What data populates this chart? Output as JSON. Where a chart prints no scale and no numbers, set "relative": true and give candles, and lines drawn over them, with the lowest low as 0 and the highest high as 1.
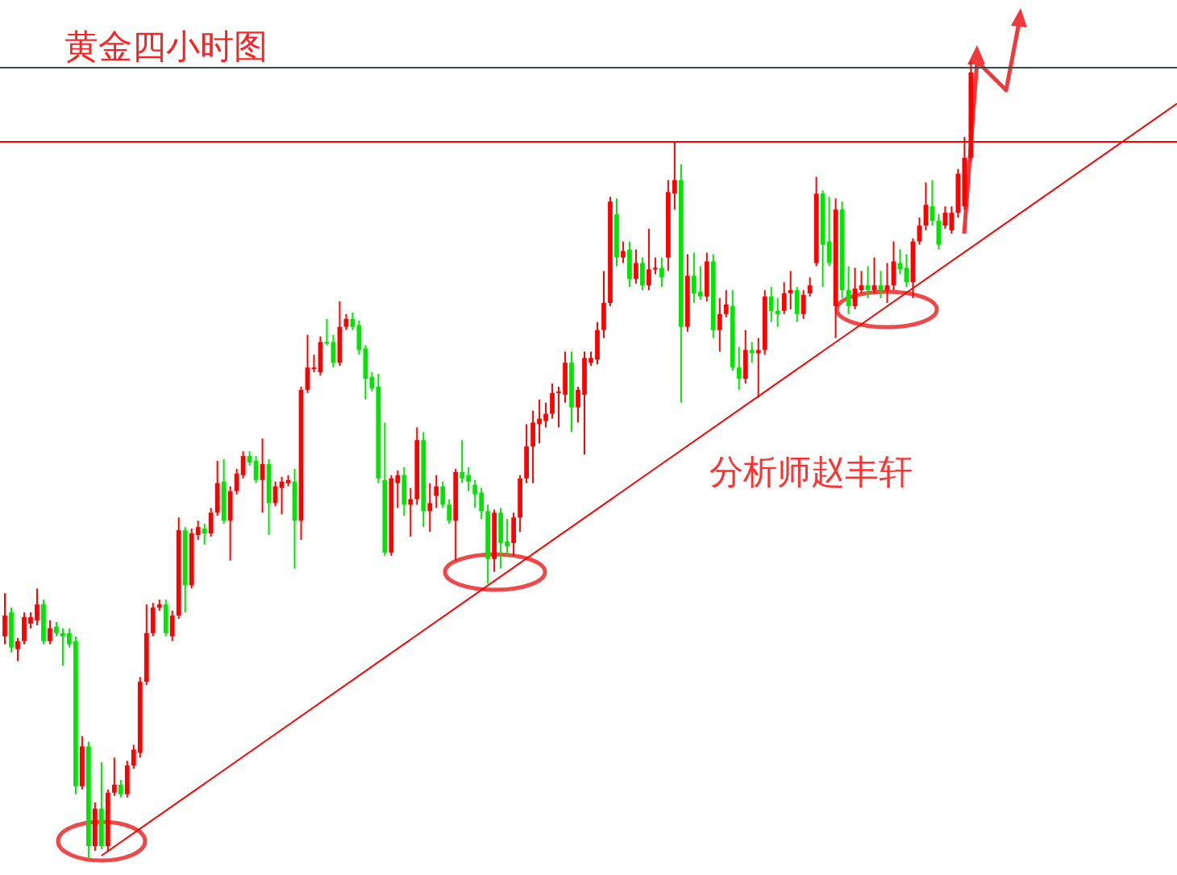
{
  "chart_data": {
    "type": "candlestick",
    "relative": true,
    "title": "黄金四小时图",
    "annotations": [
      "分析师赵丰轩"
    ],
    "categories": [
      null,
      null,
      null,
      null,
      null,
      null,
      null,
      null,
      null,
      null,
      null,
      null,
      null,
      null,
      null,
      null,
      null,
      null,
      null,
      null,
      null,
      null,
      null,
      null,
      null,
      null,
      null,
      null,
      null,
      null,
      null,
      null,
      null,
      null,
      null,
      null,
      null,
      null,
      null,
      null,
      null,
      null,
      null,
      null,
      null,
      null,
      null,
      null,
      null,
      null,
      null,
      null,
      null,
      null,
      null,
      null,
      null,
      null,
      null,
      null,
      null,
      null,
      null,
      null,
      null,
      null,
      null,
      null,
      null,
      null,
      null,
      null,
      null,
      null,
      null,
      null,
      null,
      null,
      null,
      null,
      null,
      null,
      null,
      null,
      null,
      null,
      null,
      null,
      null,
      null,
      null,
      null,
      null,
      null,
      null,
      null,
      null,
      null,
      null,
      null,
      null,
      null,
      null,
      null,
      null,
      null,
      null,
      null,
      null,
      null,
      null,
      null,
      null,
      null,
      null,
      null,
      null,
      null,
      null,
      null,
      null,
      null,
      null,
      null,
      null,
      null,
      null,
      null,
      null,
      null,
      null,
      null,
      null,
      null,
      null,
      null,
      null,
      null,
      null,
      null,
      null,
      null,
      null,
      null,
      null,
      null,
      null,
      null,
      null,
      null,
      null,
      null,
      null,
      null,
      null,
      null,
      null,
      null,
      null,
      null,
      null,
      null,
      null,
      null,
      null,
      null,
      null,
      null,
      null,
      null,
      null,
      null,
      null,
      null,
      null,
      null,
      null,
      null,
      null,
      null,
      null,
      null,
      null
    ],
    "ohlc": [
      [
        0.279,
        0.333,
        0.269,
        0.305
      ],
      [
        0.309,
        0.315,
        0.259,
        0.265
      ],
      [
        0.263,
        0.277,
        0.248,
        0.273
      ],
      [
        0.273,
        0.309,
        0.269,
        0.303
      ],
      [
        0.295,
        0.309,
        0.289,
        0.303
      ],
      [
        0.299,
        0.339,
        0.293,
        0.319
      ],
      [
        0.319,
        0.325,
        0.269,
        0.273
      ],
      [
        0.273,
        0.299,
        0.269,
        0.289
      ],
      [
        0.291,
        0.297,
        0.279,
        0.283
      ],
      [
        0.283,
        0.289,
        0.242,
        0.279
      ],
      [
        0.283,
        0.289,
        0.265,
        0.269
      ],
      [
        0.273,
        0.279,
        0.081,
        0.091
      ],
      [
        0.091,
        0.154,
        0.087,
        0.141
      ],
      [
        0.141,
        0.147,
        0,
        0.016
      ],
      [
        0.016,
        0.071,
        0.01,
        0.063
      ],
      [
        0.063,
        0.121,
        0.012,
        0.016
      ],
      [
        0.016,
        0.087,
        0.01,
        0.083
      ],
      [
        0.083,
        0.127,
        0.079,
        0.093
      ],
      [
        0.093,
        0.099,
        0.077,
        0.081
      ],
      [
        0.081,
        0.123,
        0.077,
        0.117
      ],
      [
        0.117,
        0.143,
        0.113,
        0.137
      ],
      [
        0.133,
        0.228,
        0.127,
        0.222
      ],
      [
        0.222,
        0.319,
        0.218,
        0.283
      ],
      [
        0.283,
        0.321,
        0.279,
        0.315
      ],
      [
        0.315,
        0.325,
        0.311,
        0.319
      ],
      [
        0.319,
        0.325,
        0.279,
        0.283
      ],
      [
        0.279,
        0.311,
        0.273,
        0.305
      ],
      [
        0.305,
        0.428,
        0.301,
        0.412
      ],
      [
        0.412,
        0.416,
        0.309,
        0.343
      ],
      [
        0.343,
        0.414,
        0.339,
        0.408
      ],
      [
        0.406,
        0.424,
        0.4,
        0.416
      ],
      [
        0.414,
        0.42,
        0.394,
        0.408
      ],
      [
        0.408,
        0.44,
        0.404,
        0.434
      ],
      [
        0.434,
        0.499,
        0.43,
        0.471
      ],
      [
        0.473,
        0.501,
        0.42,
        0.424
      ],
      [
        0.424,
        0.467,
        0.374,
        0.461
      ],
      [
        0.461,
        0.489,
        0.457,
        0.483
      ],
      [
        0.481,
        0.511,
        0.477,
        0.505
      ],
      [
        0.505,
        0.511,
        0.493,
        0.497
      ],
      [
        0.499,
        0.505,
        0.471,
        0.475
      ],
      [
        0.475,
        0.527,
        0.434,
        0.495
      ],
      [
        0.495,
        0.501,
        0.406,
        0.446
      ],
      [
        0.446,
        0.473,
        0.442,
        0.467
      ],
      [
        0.465,
        0.479,
        0.432,
        0.473
      ],
      [
        0.471,
        0.481,
        0.467,
        0.475
      ],
      [
        0.473,
        0.489,
        0.364,
        0.424
      ],
      [
        0.424,
        0.592,
        0.4,
        0.588
      ],
      [
        0.588,
        0.657,
        0.584,
        0.616
      ],
      [
        0.614,
        0.632,
        0.61,
        0.616
      ],
      [
        0.61,
        0.655,
        0.606,
        0.648
      ],
      [
        0.648,
        0.677,
        0.644,
        0.646
      ],
      [
        0.648,
        0.657,
        0.616,
        0.622
      ],
      [
        0.622,
        0.699,
        0.618,
        0.667
      ],
      [
        0.667,
        0.683,
        0.663,
        0.677
      ],
      [
        0.677,
        0.685,
        0.663,
        0.667
      ],
      [
        0.669,
        0.675,
        0.632,
        0.638
      ],
      [
        0.64,
        0.644,
        0.576,
        0.602
      ],
      [
        0.604,
        0.61,
        0.586,
        0.59
      ],
      [
        0.592,
        0.608,
        0.471,
        0.477
      ],
      [
        0.475,
        0.547,
        0.38,
        0.384
      ],
      [
        0.384,
        0.481,
        0.38,
        0.477
      ],
      [
        0.471,
        0.487,
        0.44,
        0.481
      ],
      [
        0.481,
        0.491,
        0.43,
        0.444
      ],
      [
        0.444,
        0.465,
        0.404,
        0.451
      ],
      [
        0.451,
        0.541,
        0.444,
        0.525
      ],
      [
        0.525,
        0.535,
        0.416,
        0.436
      ],
      [
        0.436,
        0.471,
        0.41,
        0.446
      ],
      [
        0.455,
        0.481,
        0.44,
        0.467
      ],
      [
        0.467,
        0.473,
        0.44,
        0.444
      ],
      [
        0.444,
        0.451,
        0.42,
        0.424
      ],
      [
        0.424,
        0.489,
        0.374,
        0.485
      ],
      [
        0.485,
        0.525,
        0.471,
        0.477
      ],
      [
        0.481,
        0.491,
        0.461,
        0.473
      ],
      [
        0.469,
        0.475,
        0.44,
        0.457
      ],
      [
        0.459,
        0.465,
        0.426,
        0.436
      ],
      [
        0.436,
        0.444,
        0.345,
        0.376
      ],
      [
        0.376,
        0.438,
        0.36,
        0.434
      ],
      [
        0.434,
        0.44,
        0.364,
        0.396
      ],
      [
        0.398,
        0.426,
        0.38,
        0.392
      ],
      [
        0.396,
        0.434,
        0.38,
        0.428
      ],
      [
        0.428,
        0.481,
        0.41,
        0.477
      ],
      [
        0.477,
        0.545,
        0.471,
        0.517
      ],
      [
        0.517,
        0.562,
        0.471,
        0.547
      ],
      [
        0.545,
        0.576,
        0.521,
        0.552
      ],
      [
        0.549,
        0.572,
        0.541,
        0.558
      ],
      [
        0.558,
        0.596,
        0.552,
        0.584
      ],
      [
        0.584,
        0.592,
        0.541,
        0.586
      ],
      [
        0.582,
        0.636,
        0.572,
        0.622
      ],
      [
        0.622,
        0.636,
        0.535,
        0.566
      ],
      [
        0.566,
        0.592,
        0.547,
        0.588
      ],
      [
        0.582,
        0.636,
        0.507,
        0.628
      ],
      [
        0.622,
        0.636,
        0.618,
        0.628
      ],
      [
        0.626,
        0.673,
        0.62,
        0.663
      ],
      [
        0.663,
        0.737,
        0.653,
        0.697
      ],
      [
        0.697,
        0.83,
        0.693,
        0.824
      ],
      [
        0.808,
        0.828,
        0.743,
        0.754
      ],
      [
        0.754,
        0.774,
        0.747,
        0.762
      ],
      [
        0.764,
        0.774,
        0.717,
        0.727
      ],
      [
        0.727,
        0.764,
        0.721,
        0.747
      ],
      [
        0.747,
        0.754,
        0.713,
        0.719
      ],
      [
        0.719,
        0.79,
        0.713,
        0.739
      ],
      [
        0.739,
        0.754,
        0.733,
        0.741
      ],
      [
        0.741,
        0.754,
        0.717,
        0.729
      ],
      [
        0.754,
        0.851,
        0.737,
        0.836
      ],
      [
        0.834,
        0.899,
        0.814,
        0.851
      ],
      [
        0.851,
        0.871,
        0.572,
        0.667
      ],
      [
        0.667,
        0.758,
        0.661,
        0.731
      ],
      [
        0.731,
        0.76,
        0.697,
        0.709
      ],
      [
        0.711,
        0.743,
        0.701,
        0.705
      ],
      [
        0.705,
        0.76,
        0.699,
        0.749
      ],
      [
        0.749,
        0.758,
        0.653,
        0.663
      ],
      [
        0.663,
        0.703,
        0.636,
        0.683
      ],
      [
        0.683,
        0.713,
        0.679,
        0.695
      ],
      [
        0.693,
        0.713,
        0.612,
        0.616
      ],
      [
        0.616,
        0.642,
        0.588,
        0.602
      ],
      [
        0.602,
        0.663,
        0.596,
        0.638
      ],
      [
        0.638,
        0.648,
        0.622,
        0.634
      ],
      [
        0.634,
        0.653,
        0.578,
        0.638
      ],
      [
        0.638,
        0.713,
        0.632,
        0.705
      ],
      [
        0.705,
        0.717,
        0.673,
        0.687
      ],
      [
        0.687,
        0.703,
        0.667,
        0.683
      ],
      [
        0.687,
        0.723,
        0.683,
        0.709
      ],
      [
        0.709,
        0.737,
        0.689,
        0.713
      ],
      [
        0.713,
        0.717,
        0.673,
        0.683
      ],
      [
        0.683,
        0.713,
        0.677,
        0.707
      ],
      [
        0.709,
        0.729,
        0.705,
        0.719
      ],
      [
        0.747,
        0.855,
        0.743,
        0.834
      ],
      [
        0.834,
        0.838,
        0.717,
        0.77
      ],
      [
        0.774,
        0.83,
        0.743,
        0.747
      ],
      [
        0.693,
        0.828,
        0.653,
        0.814
      ],
      [
        0.814,
        0.824,
        0.703,
        0.713
      ],
      [
        0.713,
        0.743,
        0.683,
        0.693
      ],
      [
        0.693,
        0.741,
        0.689,
        0.715
      ],
      [
        0.713,
        0.737,
        0.709,
        0.719
      ],
      [
        0.719,
        0.743,
        0.703,
        0.713
      ],
      [
        0.713,
        0.754,
        0.709,
        0.719
      ],
      [
        0.719,
        0.737,
        0.703,
        0.713
      ],
      [
        0.713,
        0.747,
        0.697,
        0.719
      ],
      [
        0.719,
        0.774,
        0.713,
        0.749
      ],
      [
        0.747,
        0.764,
        0.733,
        0.739
      ],
      [
        0.741,
        0.758,
        0.717,
        0.723
      ],
      [
        0.723,
        0.778,
        0.703,
        0.774
      ],
      [
        0.774,
        0.804,
        0.77,
        0.794
      ],
      [
        0.794,
        0.848,
        0.788,
        0.82
      ],
      [
        0.818,
        0.851,
        0.794,
        0.8
      ],
      [
        0.8,
        0.808,
        0.764,
        0.77
      ],
      [
        0.794,
        0.818,
        0.79,
        0.81
      ],
      [
        0.788,
        0.818,
        0.784,
        0.81
      ],
      [
        0.81,
        0.865,
        0.804,
        0.859
      ],
      [
        0.818,
        0.905,
        0.814,
        0.879
      ],
      [
        0.879,
        1,
        0.875,
        0.986
      ],
      null,
      null,
      null,
      null,
      null,
      null,
      null,
      null,
      null,
      null,
      null,
      null,
      null,
      null,
      null,
      null,
      null,
      null,
      null,
      null,
      null,
      null,
      null,
      null,
      null,
      null,
      null,
      null,
      null,
      null,
      null,
      null
    ],
    "colors": [
      "#ff0000",
      "#00e600",
      "#ff0000",
      "#ff0000",
      "#ff0000",
      "#ff0000",
      "#00e600",
      "#ff0000",
      "#00e600",
      "#00e600",
      "#00e600",
      "#00e600",
      "#ff0000",
      "#00e600",
      "#ff0000",
      "#00e600",
      "#ff0000",
      "#ff0000",
      "#00e600",
      "#ff0000",
      "#ff0000",
      "#ff0000",
      "#ff0000",
      "#ff0000",
      "#ff0000",
      "#00e600",
      "#ff0000",
      "#ff0000",
      "#00e600",
      "#ff0000",
      "#ff0000",
      "#00e600",
      "#ff0000",
      "#ff0000",
      "#00e600",
      "#ff0000",
      "#ff0000",
      "#ff0000",
      "#00e600",
      "#00e600",
      "#ff0000",
      "#00e600",
      "#ff0000",
      "#ff0000",
      "#ff0000",
      "#00e600",
      "#ff0000",
      "#ff0000",
      "#ff0000",
      "#ff0000",
      "#00e600",
      "#00e600",
      "#ff0000",
      "#ff0000",
      "#00e600",
      "#00e600",
      "#00e600",
      "#00e600",
      "#00e600",
      "#00e600",
      "#ff0000",
      "#ff0000",
      "#00e600",
      "#ff0000",
      "#ff0000",
      "#00e600",
      "#ff0000",
      "#ff0000",
      "#00e600",
      "#00e600",
      "#ff0000",
      "#00e600",
      "#00e600",
      "#00e600",
      "#00e600",
      "#00e600",
      "#ff0000",
      "#00e600",
      "#00e600",
      "#ff0000",
      "#ff0000",
      "#ff0000",
      "#ff0000",
      "#ff0000",
      "#ff0000",
      "#ff0000",
      "#ff0000",
      "#ff0000",
      "#00e600",
      "#ff0000",
      "#ff0000",
      "#ff0000",
      "#ff0000",
      "#ff0000",
      "#ff0000",
      "#00e600",
      "#ff0000",
      "#00e600",
      "#ff0000",
      "#00e600",
      "#ff0000",
      "#ff0000",
      "#00e600",
      "#ff0000",
      "#ff0000",
      "#00e600",
      "#ff0000",
      "#00e600",
      "#00e600",
      "#ff0000",
      "#00e600",
      "#ff0000",
      "#ff0000",
      "#00e600",
      "#00e600",
      "#ff0000",
      "#00e600",
      "#ff0000",
      "#ff0000",
      "#00e600",
      "#00e600",
      "#ff0000",
      "#ff0000",
      "#00e600",
      "#ff0000",
      "#ff0000",
      "#ff0000",
      "#00e600",
      "#00e600",
      "#ff0000",
      "#00e600",
      "#00e600",
      "#ff0000",
      "#ff0000",
      "#00e600",
      "#ff0000",
      "#00e600",
      "#ff0000",
      "#ff0000",
      "#00e600",
      "#00e600",
      "#ff0000",
      "#ff0000",
      "#ff0000",
      "#00e600",
      "#00e600",
      "#ff0000",
      "#ff0000",
      "#ff0000",
      "#ff0000",
      "#ff0000",
      null,
      null,
      null,
      null,
      null,
      null,
      null,
      null,
      null,
      null,
      null,
      null,
      null,
      null,
      null,
      null,
      null,
      null,
      null,
      null,
      null,
      null,
      null,
      null,
      null,
      null,
      null,
      null,
      null,
      null,
      null,
      null
    ],
    "series": [
      {
        "type": "line",
        "color": "#ff0000",
        "values": [
          null,
          null,
          null,
          null,
          null,
          null,
          null,
          null,
          null,
          null,
          null,
          null,
          null,
          null,
          null,
          0.004,
          null,
          null,
          null,
          null,
          null,
          null,
          null,
          null,
          null,
          null,
          null,
          null,
          null,
          null,
          null,
          null,
          null,
          null,
          null,
          null,
          null,
          null,
          null,
          null,
          null,
          null,
          null,
          null,
          null,
          null,
          null,
          null,
          null,
          null,
          null,
          null,
          null,
          null,
          null,
          null,
          null,
          null,
          null,
          null,
          null,
          null,
          null,
          null,
          null,
          null,
          null,
          null,
          null,
          null,
          null,
          null,
          null,
          null,
          null,
          null,
          null,
          null,
          null,
          null,
          null,
          null,
          null,
          null,
          null,
          null,
          null,
          null,
          null,
          null,
          null,
          null,
          null,
          null,
          null,
          null,
          null,
          null,
          null,
          null,
          null,
          null,
          null,
          null,
          null,
          null,
          null,
          null,
          null,
          null,
          null,
          null,
          null,
          null,
          null,
          null,
          null,
          null,
          null,
          null,
          null,
          null,
          null,
          null,
          null,
          null,
          null,
          null,
          null,
          null,
          null,
          null,
          null,
          null,
          null,
          null,
          null,
          null,
          null,
          null,
          null,
          null,
          null,
          null,
          null,
          null,
          null,
          null,
          null,
          null,
          null,
          null,
          null,
          null,
          null,
          null,
          null,
          null,
          null,
          null,
          null,
          null,
          null,
          null,
          null,
          null,
          null,
          null,
          null,
          null,
          null,
          null,
          null,
          null,
          null,
          null,
          null,
          null,
          null,
          null,
          null,
          null,
          0.947
        ]
      }
    ],
    "ref_lines": [
      {
        "axis": "y",
        "value": 0.992,
        "color": "#2f4f4f"
      },
      {
        "axis": "y",
        "value": 0.899,
        "color": "#ff0000"
      }
    ]
  }
}
